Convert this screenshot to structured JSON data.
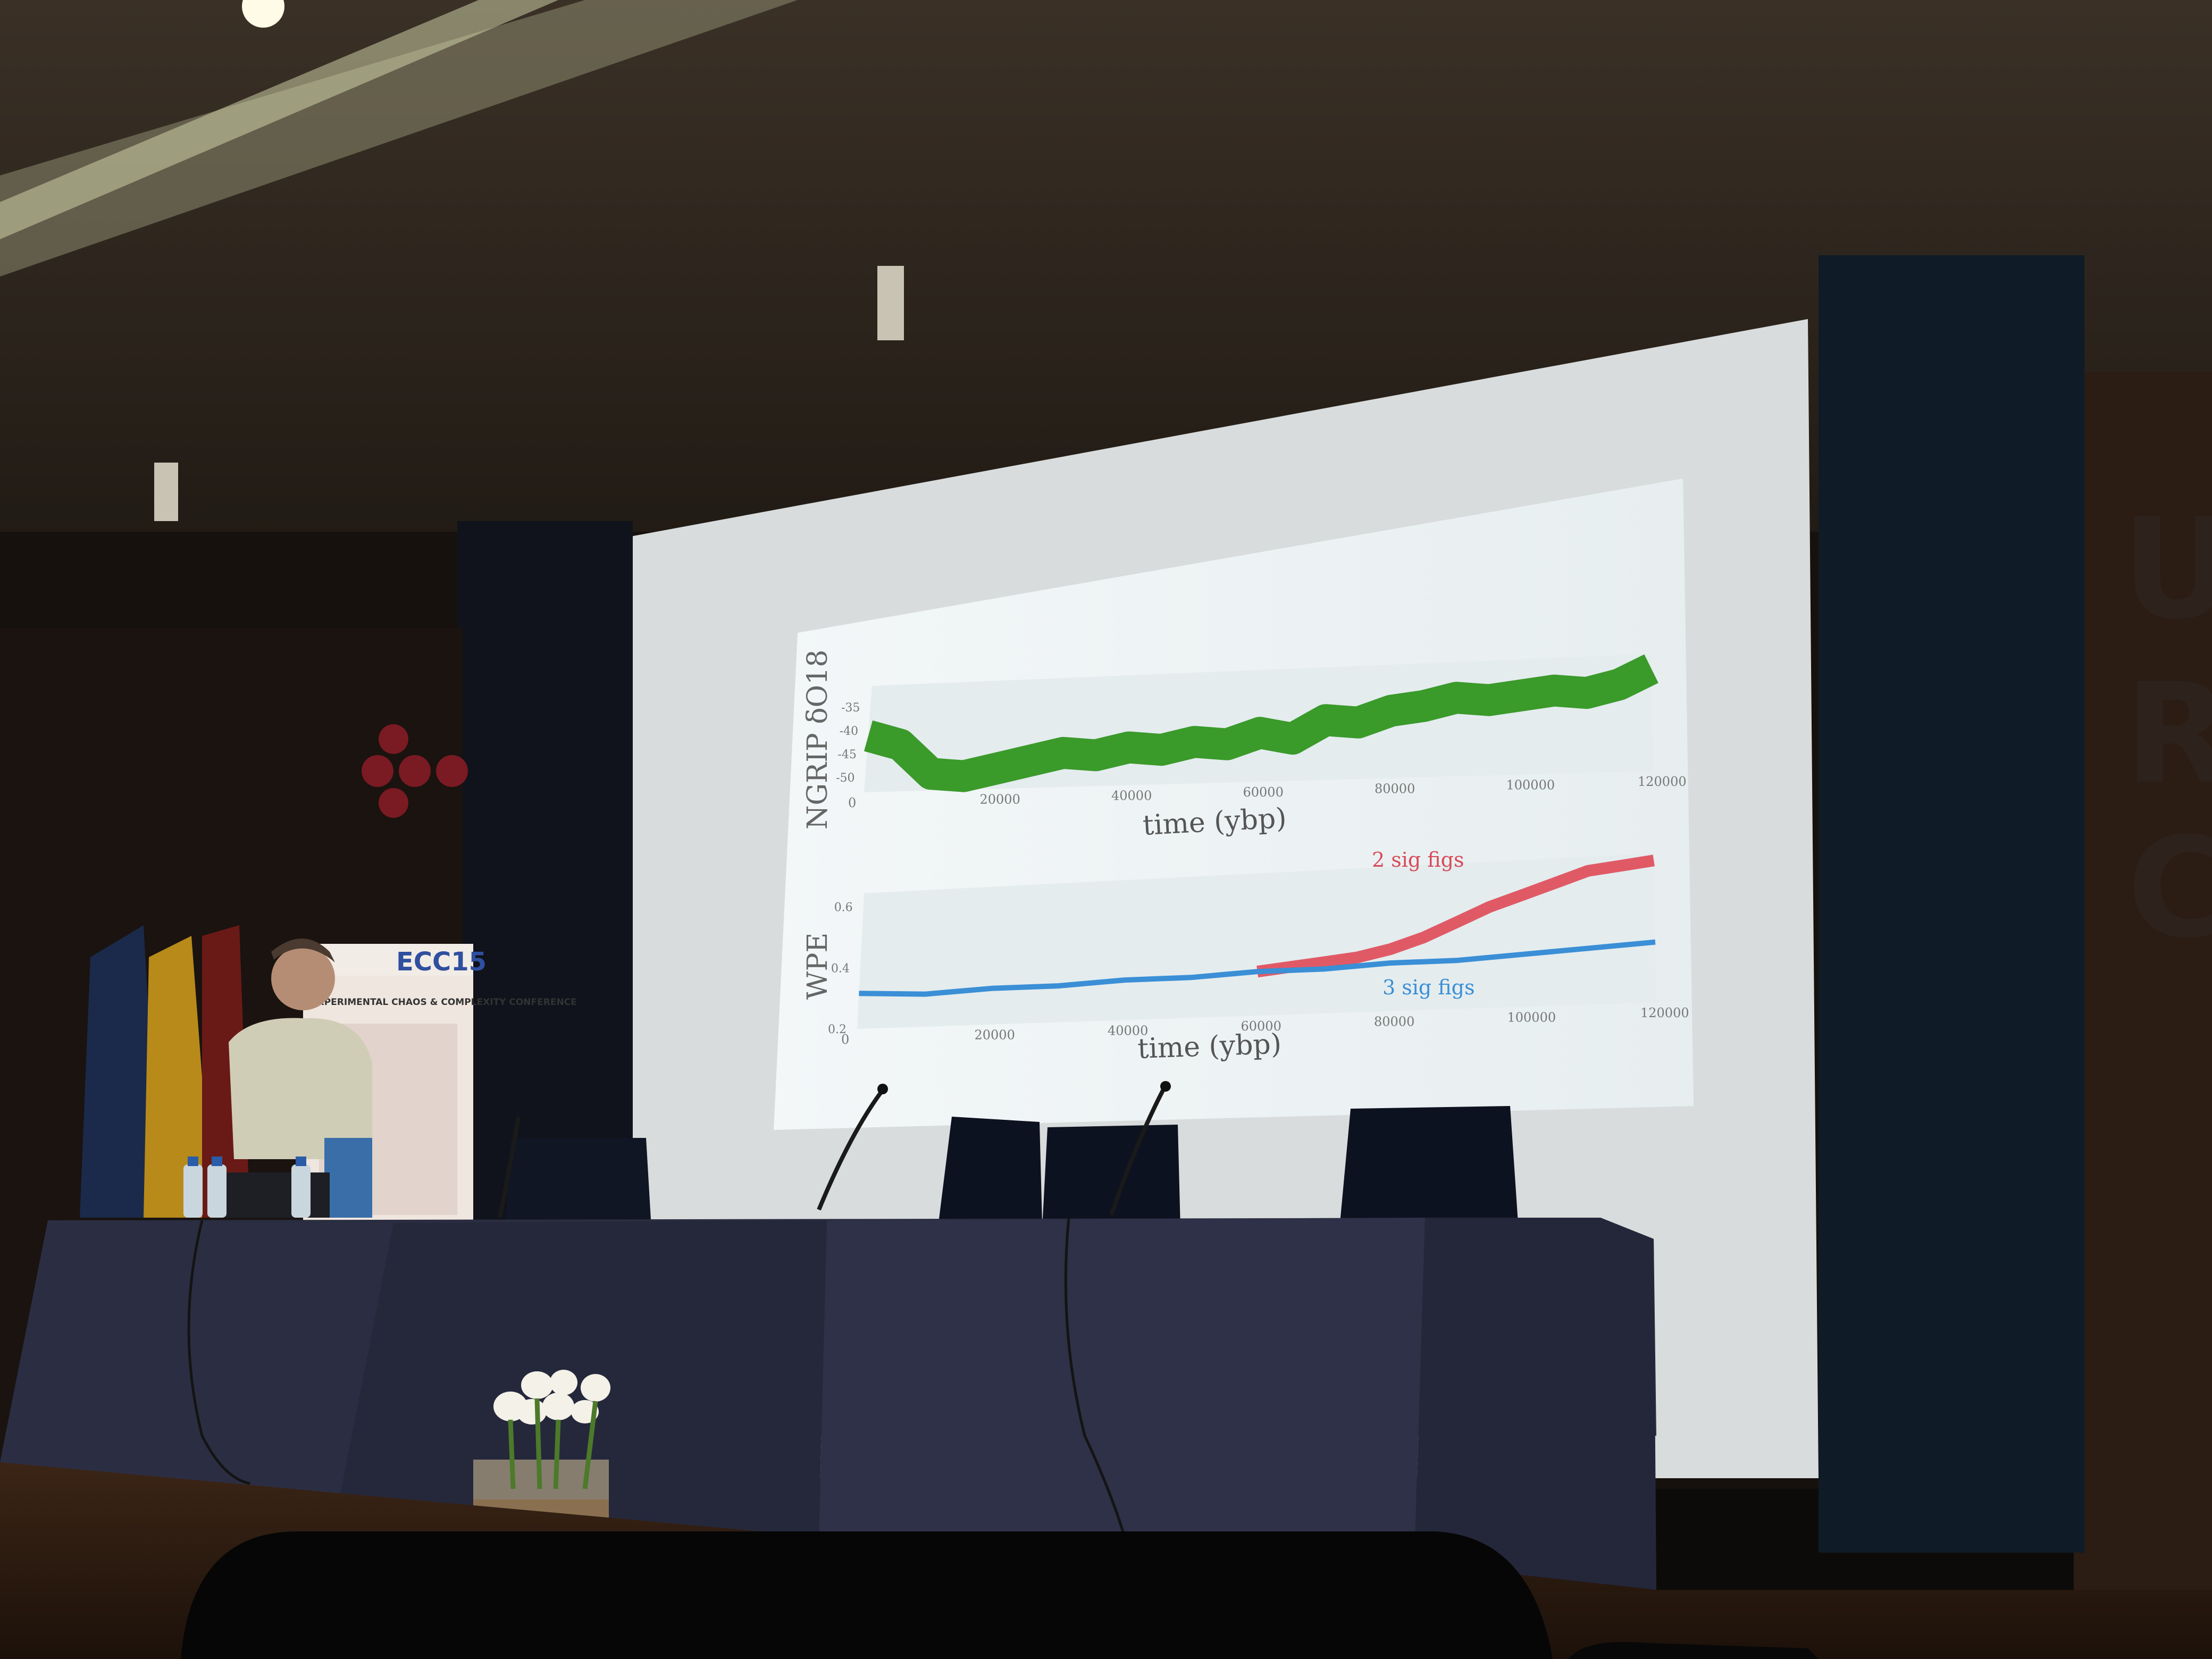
{
  "banner": {
    "title": "ECC15",
    "subtitle": "EXPERIMENTAL CHAOS & COMPLEXITY CONFERENCE"
  },
  "wall_letters": [
    "U",
    "R",
    "C"
  ],
  "slide": {
    "chart_data": [
      {
        "type": "line",
        "ylabel": "NGRIP δO18",
        "xlabel": "time (ybp)",
        "x_ticks": [
          "0",
          "20000",
          "40000",
          "60000",
          "80000",
          "100000",
          "120000"
        ],
        "y_ticks": [
          "-35",
          "-40",
          "-45",
          "-50"
        ],
        "grid": true,
        "series": [
          {
            "color": "#3a9a2a",
            "x": [
              0,
              5000,
              10000,
              15000,
              20000,
              25000,
              30000,
              35000,
              40000,
              45000,
              50000,
              55000,
              60000,
              65000,
              70000,
              75000,
              80000,
              85000,
              90000,
              95000,
              100000,
              105000,
              110000,
              115000,
              120000
            ],
            "y": [
              -35.5,
              -37,
              -41.5,
              -42,
              -41,
              -40,
              -39,
              -39.5,
              -38.5,
              -39,
              -38,
              -38.5,
              -37,
              -38,
              -35.5,
              -36,
              -34.5,
              -34,
              -33,
              -33.5,
              -33,
              -32.5,
              -33,
              -32,
              -30
            ]
          }
        ]
      },
      {
        "type": "line",
        "ylabel": "WPE",
        "xlabel": "time (ybp)",
        "x_ticks": [
          "0",
          "20000",
          "40000",
          "60000",
          "80000",
          "100000",
          "120000"
        ],
        "y_ticks": [
          "0.2",
          "0.4",
          "0.6"
        ],
        "ylim": [
          0.2,
          0.6
        ],
        "grid": true,
        "annotations": [
          "2 sig figs",
          "3 sig figs"
        ],
        "series": [
          {
            "color": "#e05a66",
            "x": [
              60000,
              65000,
              70000,
              75000,
              80000,
              85000,
              90000,
              95000,
              100000,
              105000,
              110000,
              115000,
              120000
            ],
            "y": [
              0.33,
              0.34,
              0.35,
              0.36,
              0.38,
              0.41,
              0.45,
              0.49,
              0.52,
              0.55,
              0.58,
              0.59,
              0.6
            ]
          },
          {
            "color": "#3a8fd6",
            "x": [
              0,
              10000,
              20000,
              30000,
              40000,
              50000,
              60000,
              70000,
              80000,
              90000,
              100000,
              110000,
              120000
            ],
            "y": [
              0.31,
              0.3,
              0.31,
              0.31,
              0.32,
              0.32,
              0.33,
              0.33,
              0.34,
              0.34,
              0.35,
              0.36,
              0.37
            ]
          }
        ]
      }
    ]
  }
}
